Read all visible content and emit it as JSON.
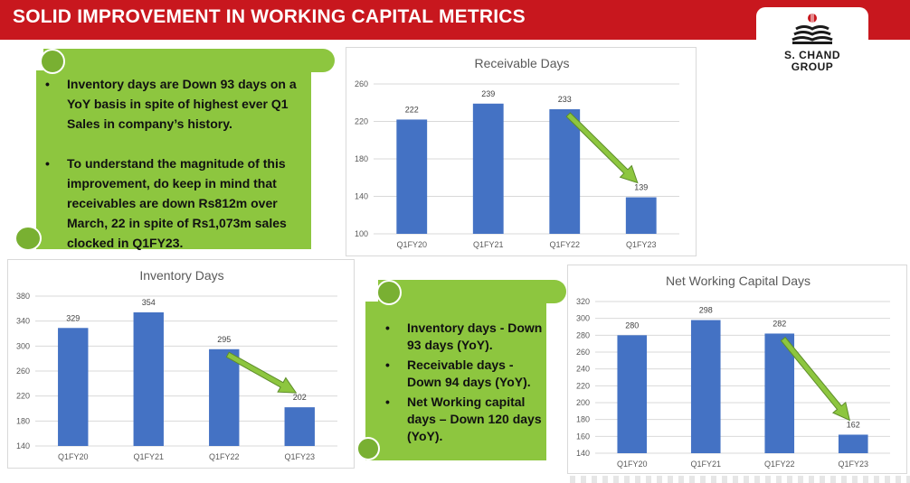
{
  "header": {
    "title": "SOLID IMPROVEMENT IN WORKING CAPITAL METRICS"
  },
  "logo": {
    "line1": "S. CHAND",
    "line2": "GROUP",
    "icon": "book-logo-icon"
  },
  "callout_top": {
    "bullets": [
      "Inventory days are Down 93 days on a YoY basis in spite of highest ever Q1 Sales in company’s history.",
      "To understand the magnitude of this improvement, do keep in mind that receivables are down Rs812m over March, 22 in spite of Rs1,073m sales clocked in Q1FY23."
    ]
  },
  "callout_bottom": {
    "bullets": [
      "Inventory days - Down 93 days (YoY).",
      "Receivable days - Down 94 days (YoY).",
      "Net Working capital days – Down 120 days (YoY)."
    ]
  },
  "colors": {
    "header": "#c8171e",
    "bar": "#4472c4",
    "callout": "#8dc63f",
    "arrow": "#8dc63f"
  },
  "chart_data": [
    {
      "id": "receivable",
      "type": "bar",
      "title": "Receivable Days",
      "categories": [
        "Q1FY20",
        "Q1FY21",
        "Q1FY22",
        "Q1FY23"
      ],
      "values": [
        222,
        239,
        233,
        139
      ],
      "ylim": [
        100,
        260
      ],
      "yticks": [
        100,
        140,
        180,
        220,
        260
      ],
      "grid": true,
      "annotation": "trend-arrow-down"
    },
    {
      "id": "inventory",
      "type": "bar",
      "title": "Inventory Days",
      "categories": [
        "Q1FY20",
        "Q1FY21",
        "Q1FY22",
        "Q1FY23"
      ],
      "values": [
        329,
        354,
        295,
        202
      ],
      "ylim": [
        140,
        380
      ],
      "yticks": [
        140,
        180,
        220,
        260,
        300,
        340,
        380
      ],
      "grid": true,
      "annotation": "trend-arrow-down"
    },
    {
      "id": "nwc",
      "type": "bar",
      "title": "Net Working Capital Days",
      "categories": [
        "Q1FY20",
        "Q1FY21",
        "Q1FY22",
        "Q1FY23"
      ],
      "values": [
        280,
        298,
        282,
        162
      ],
      "ylim": [
        140,
        320
      ],
      "yticks": [
        140,
        160,
        180,
        200,
        220,
        240,
        260,
        280,
        300,
        320
      ],
      "grid": true,
      "annotation": "trend-arrow-down"
    }
  ]
}
